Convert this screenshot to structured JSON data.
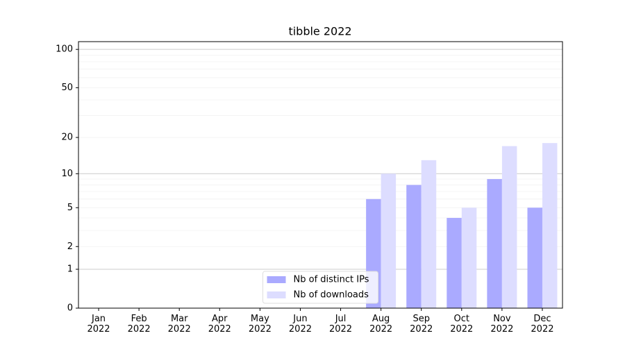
{
  "chart_data": {
    "type": "bar",
    "title": "tibble 2022",
    "categories": [
      "Jan\n2022",
      "Feb\n2022",
      "Mar\n2022",
      "Apr\n2022",
      "May\n2022",
      "Jun\n2022",
      "Jul\n2022",
      "Aug\n2022",
      "Sep\n2022",
      "Oct\n2022",
      "Nov\n2022",
      "Dec\n2022"
    ],
    "series": [
      {
        "name": "Nb of distinct IPs",
        "color": "#aaaaff",
        "values": [
          0,
          0,
          0,
          0,
          0,
          0,
          0,
          6,
          8,
          4,
          9,
          5
        ]
      },
      {
        "name": "Nb of downloads",
        "color": "#ddddff",
        "values": [
          0,
          0,
          0,
          0,
          0,
          0,
          0,
          10,
          13,
          5,
          17,
          18
        ]
      }
    ],
    "yscale": "log1p",
    "ylim": [
      0,
      115
    ],
    "yticks": [
      0,
      1,
      2,
      5,
      10,
      20,
      50,
      100
    ],
    "ygrid_major": [
      1,
      10,
      100
    ],
    "ygrid_minor": [
      2,
      3,
      4,
      5,
      6,
      7,
      8,
      9,
      20,
      30,
      40,
      50,
      60,
      70,
      80,
      90
    ],
    "legend": "lower center"
  }
}
